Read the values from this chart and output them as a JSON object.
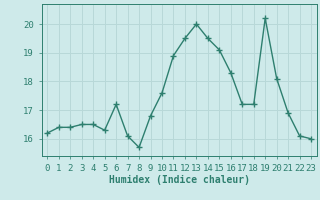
{
  "x": [
    0,
    1,
    2,
    3,
    4,
    5,
    6,
    7,
    8,
    9,
    10,
    11,
    12,
    13,
    14,
    15,
    16,
    17,
    18,
    19,
    20,
    21,
    22,
    23
  ],
  "y": [
    16.2,
    16.4,
    16.4,
    16.5,
    16.5,
    16.3,
    17.2,
    16.1,
    15.7,
    16.8,
    17.6,
    18.9,
    19.5,
    20.0,
    19.5,
    19.1,
    18.3,
    17.2,
    17.2,
    20.2,
    18.1,
    16.9,
    16.1,
    16.0
  ],
  "line_color": "#2e7f6f",
  "marker": "+",
  "markersize": 4,
  "linewidth": 1.0,
  "bg_color": "#ceeaea",
  "grid_color": "#b8d8d8",
  "xlabel": "Humidex (Indice chaleur)",
  "xlabel_fontsize": 7,
  "tick_fontsize": 6.5,
  "yticks": [
    16,
    17,
    18,
    19,
    20
  ],
  "xticks": [
    0,
    1,
    2,
    3,
    4,
    5,
    6,
    7,
    8,
    9,
    10,
    11,
    12,
    13,
    14,
    15,
    16,
    17,
    18,
    19,
    20,
    21,
    22,
    23
  ],
  "xlim": [
    -0.5,
    23.5
  ],
  "ylim": [
    15.4,
    20.7
  ]
}
